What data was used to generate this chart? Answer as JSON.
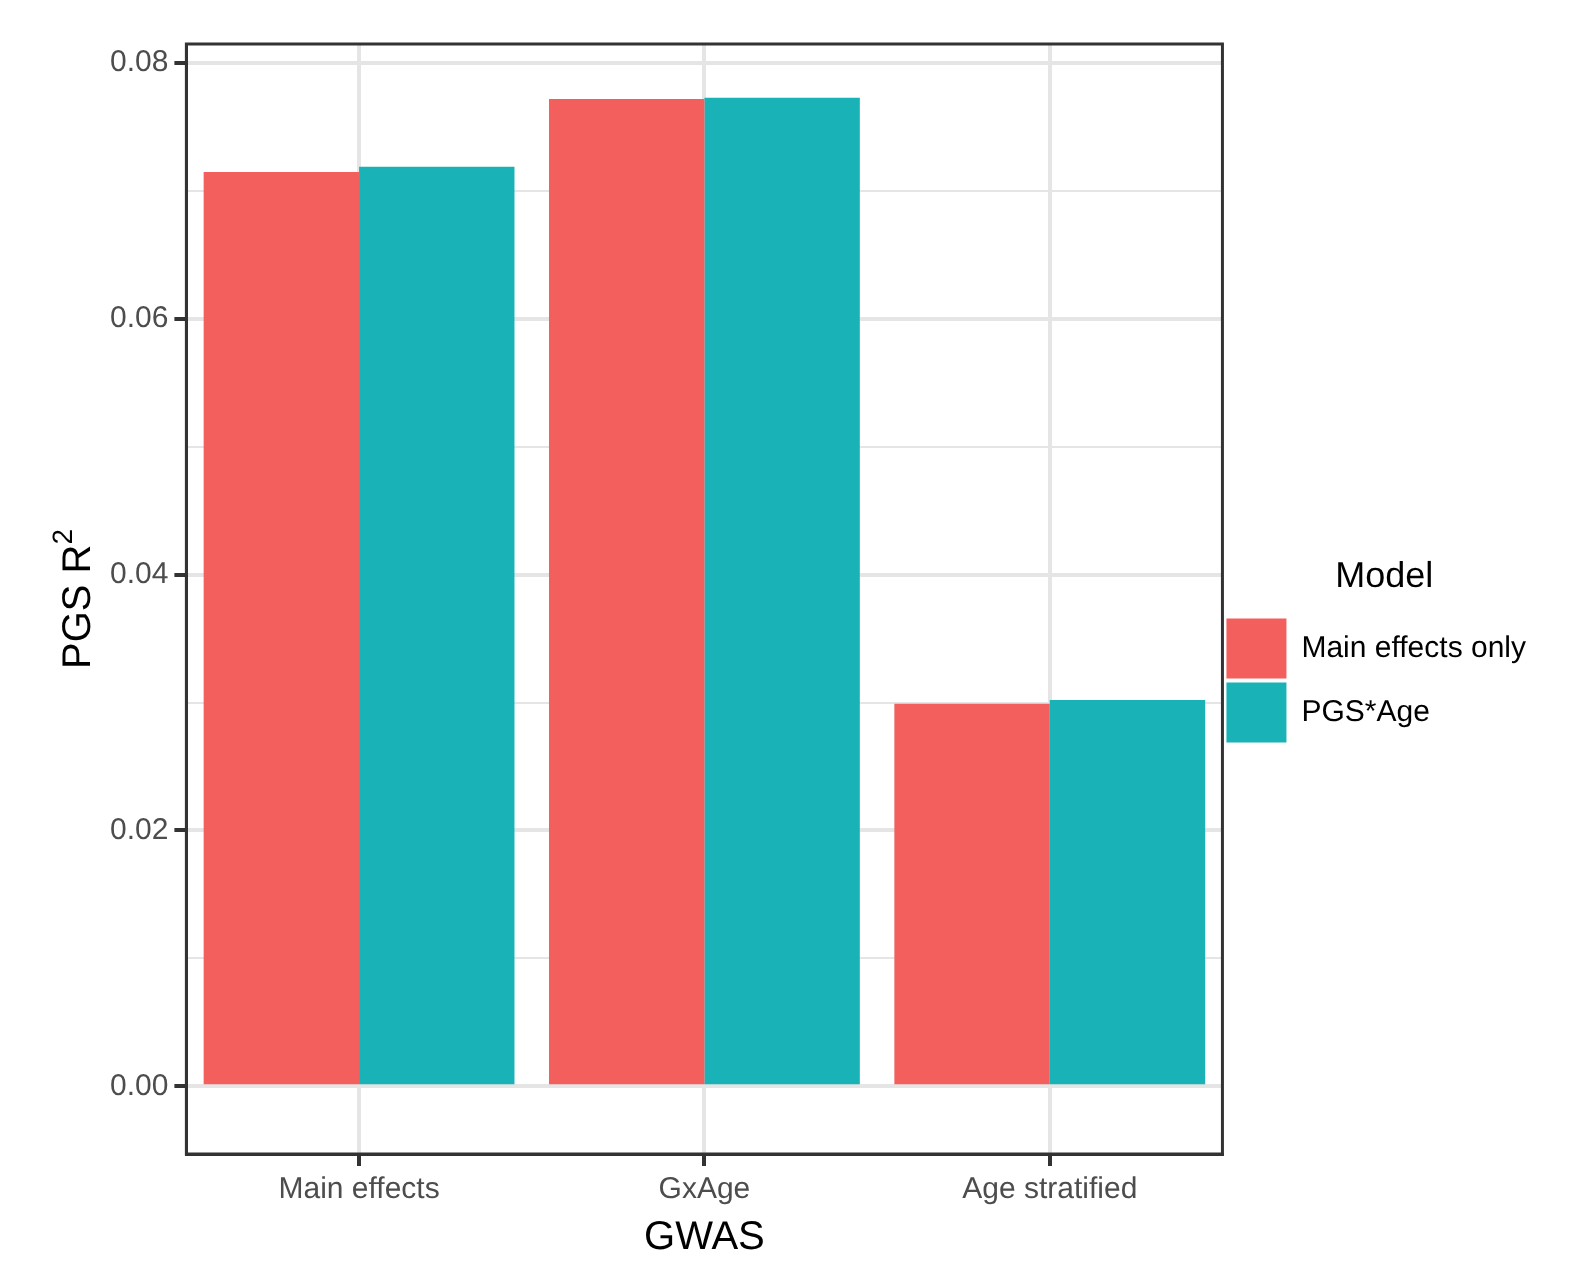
{
  "chart_data": {
    "type": "bar",
    "xlabel": "GWAS",
    "ylabel": "PGS R$^{2}$",
    "legend_title": "Model",
    "categories": [
      "Main effects",
      "GxAge",
      "Age stratified"
    ],
    "series": [
      {
        "name": "Main effects only",
        "color": "#f25f5c",
        "values": [
          0.0715,
          0.0772,
          0.0299
        ]
      },
      {
        "name": "PGS*Age",
        "color": "#19b2b6",
        "values": [
          0.0719,
          0.0773,
          0.0302
        ]
      }
    ],
    "ylim": [
      -0.0053,
      0.0815
    ],
    "yticks": [
      {
        "value": 0,
        "label": "0.00"
      },
      {
        "value": 0.01,
        "label": null
      },
      {
        "value": 0.02,
        "label": "0.02"
      },
      {
        "value": 0.03,
        "label": null
      },
      {
        "value": 0.04,
        "label": "0.04"
      },
      {
        "value": 0.05,
        "label": null
      },
      {
        "value": 0.06,
        "label": "0.06"
      },
      {
        "value": 0.07,
        "label": null
      },
      {
        "value": 0.08,
        "label": "0.08"
      }
    ],
    "grid": true,
    "legend": "right"
  }
}
